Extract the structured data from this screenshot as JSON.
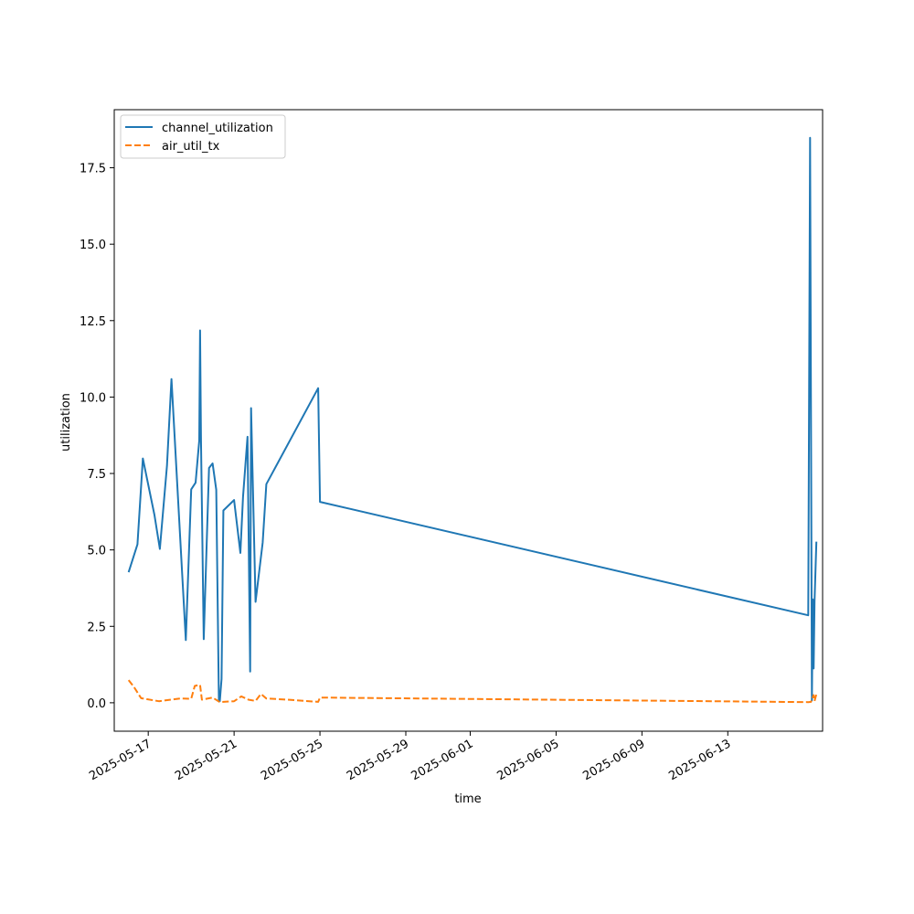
{
  "chart_data": {
    "type": "line",
    "title": "",
    "xlabel": "time",
    "ylabel": "utilization",
    "x_axis_type": "date",
    "xlim": [
      "2025-05-15T10:00",
      "2025-06-17T10:00"
    ],
    "ylim": [
      -0.93,
      19.4
    ],
    "x_ticks": [
      "2025-05-17",
      "2025-05-21",
      "2025-05-25",
      "2025-05-29",
      "2025-06-01",
      "2025-06-05",
      "2025-06-09",
      "2025-06-13"
    ],
    "y_ticks": [
      "0.0",
      "2.5",
      "5.0",
      "7.5",
      "10.0",
      "12.5",
      "15.0",
      "17.5"
    ],
    "y_tick_values": [
      0,
      2.5,
      5,
      7.5,
      10,
      12.5,
      15,
      17.5
    ],
    "grid": false,
    "legend": {
      "position": "upper-left"
    },
    "series": [
      {
        "name": "channel_utilization",
        "color": "#1f77b4",
        "style": "solid",
        "points": [
          [
            "2025-05-16T02:00",
            4.27
          ],
          [
            "2025-05-16T12:00",
            5.18
          ],
          [
            "2025-05-16T18:00",
            7.99
          ],
          [
            "2025-05-17T07:00",
            6.14
          ],
          [
            "2025-05-17T13:00",
            5.03
          ],
          [
            "2025-05-17T21:00",
            7.76
          ],
          [
            "2025-05-18T02:00",
            10.59
          ],
          [
            "2025-05-18T18:00",
            2.05
          ],
          [
            "2025-05-19T00:00",
            6.98
          ],
          [
            "2025-05-19T05:00",
            7.2
          ],
          [
            "2025-05-19T09:00",
            8.58
          ],
          [
            "2025-05-19T10:00",
            12.18
          ],
          [
            "2025-05-19T11:00",
            8.61
          ],
          [
            "2025-05-19T14:00",
            2.08
          ],
          [
            "2025-05-19T20:00",
            7.68
          ],
          [
            "2025-05-20T00:00",
            7.83
          ],
          [
            "2025-05-20T04:00",
            6.97
          ],
          [
            "2025-05-20T07:00",
            0.05
          ],
          [
            "2025-05-20T08:00",
            0.05
          ],
          [
            "2025-05-20T10:00",
            0.78
          ],
          [
            "2025-05-20T12:00",
            6.29
          ],
          [
            "2025-05-21T00:00",
            6.63
          ],
          [
            "2025-05-21T07:00",
            4.9
          ],
          [
            "2025-05-21T10:00",
            6.74
          ],
          [
            "2025-05-21T15:00",
            8.7
          ],
          [
            "2025-05-21T18:00",
            1.02
          ],
          [
            "2025-05-21T19:00",
            9.64
          ],
          [
            "2025-05-22T00:00",
            3.3
          ],
          [
            "2025-05-22T08:00",
            5.24
          ],
          [
            "2025-05-22T12:00",
            7.15
          ],
          [
            "2025-05-24T22:00",
            10.29
          ],
          [
            "2025-05-25T00:00",
            6.57
          ],
          [
            "2025-06-16T18:00",
            2.86
          ],
          [
            "2025-06-16T20:00",
            18.48
          ],
          [
            "2025-06-16T22:00",
            0.08
          ],
          [
            "2025-06-16T23:00",
            3.38
          ],
          [
            "2025-06-17T00:00",
            1.12
          ],
          [
            "2025-06-17T01:00",
            3.34
          ],
          [
            "2025-06-17T03:00",
            5.27
          ]
        ]
      },
      {
        "name": "air_util_tx",
        "color": "#ff7f0e",
        "style": "dashed",
        "points": [
          [
            "2025-05-16T02:00",
            0.74
          ],
          [
            "2025-05-16T08:00",
            0.52
          ],
          [
            "2025-05-16T16:00",
            0.15
          ],
          [
            "2025-05-17T12:00",
            0.05
          ],
          [
            "2025-05-18T12:00",
            0.14
          ],
          [
            "2025-05-19T00:00",
            0.13
          ],
          [
            "2025-05-19T04:00",
            0.55
          ],
          [
            "2025-05-19T08:00",
            0.58
          ],
          [
            "2025-05-19T10:00",
            0.58
          ],
          [
            "2025-05-19T12:00",
            0.1
          ],
          [
            "2025-05-20T00:00",
            0.17
          ],
          [
            "2025-05-20T08:00",
            0.02
          ],
          [
            "2025-05-20T12:00",
            0.03
          ],
          [
            "2025-05-21T00:00",
            0.05
          ],
          [
            "2025-05-21T08:00",
            0.21
          ],
          [
            "2025-05-21T16:00",
            0.1
          ],
          [
            "2025-05-22T00:00",
            0.06
          ],
          [
            "2025-05-22T06:00",
            0.29
          ],
          [
            "2025-05-22T12:00",
            0.14
          ],
          [
            "2025-05-23T12:00",
            0.1
          ],
          [
            "2025-05-24T22:00",
            0.03
          ],
          [
            "2025-05-25T00:00",
            0.17
          ],
          [
            "2025-06-16T18:00",
            0.02
          ],
          [
            "2025-06-16T21:00",
            0.03
          ],
          [
            "2025-06-17T00:00",
            0.25
          ],
          [
            "2025-06-17T01:00",
            0.06
          ],
          [
            "2025-06-17T03:00",
            0.28
          ]
        ]
      }
    ]
  }
}
